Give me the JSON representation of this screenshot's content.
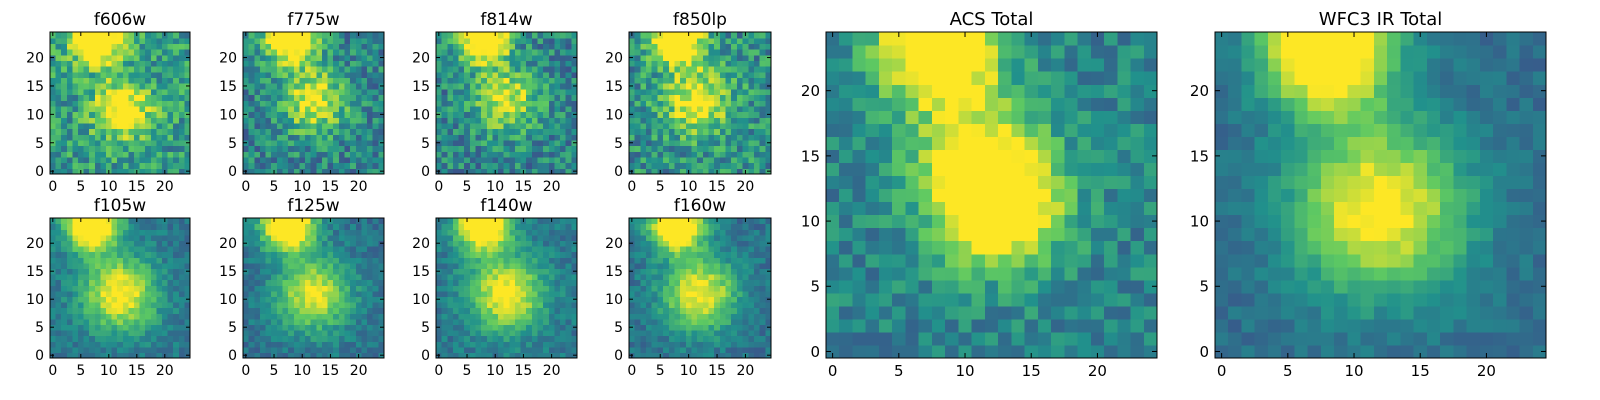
{
  "figure": {
    "colormap": "viridis",
    "ink": "#000000"
  },
  "chart_data": [
    {
      "type": "heatmap",
      "title": "f606w",
      "xlim": [
        0,
        24
      ],
      "ylim": [
        0,
        24
      ],
      "xticks": [
        "0",
        "5",
        "10",
        "15",
        "20"
      ],
      "yticks": [
        "0",
        "5",
        "10",
        "15",
        "20"
      ],
      "peaks": [
        [
          8,
          23.5,
          1.0,
          3.0
        ],
        [
          12.5,
          11,
          0.6,
          3.5
        ]
      ],
      "base": 0.55,
      "noise": 0.42,
      "seed": 11
    },
    {
      "type": "heatmap",
      "title": "f775w",
      "xlim": [
        0,
        24
      ],
      "ylim": [
        0,
        24
      ],
      "xticks": [
        "0",
        "5",
        "10",
        "15",
        "20"
      ],
      "yticks": [
        "0",
        "5",
        "10",
        "15",
        "20"
      ],
      "peaks": [
        [
          8,
          23.5,
          1.0,
          3.0
        ],
        [
          12,
          12.5,
          0.55,
          4.0
        ]
      ],
      "base": 0.45,
      "noise": 0.4,
      "seed": 23
    },
    {
      "type": "heatmap",
      "title": "f814w",
      "xlim": [
        0,
        24
      ],
      "ylim": [
        0,
        24
      ],
      "xticks": [
        "0",
        "5",
        "10",
        "15",
        "20"
      ],
      "yticks": [
        "0",
        "5",
        "10",
        "15",
        "20"
      ],
      "peaks": [
        [
          8,
          23.5,
          1.0,
          3.0
        ],
        [
          12,
          12.5,
          0.5,
          4.0
        ]
      ],
      "base": 0.45,
      "noise": 0.4,
      "seed": 37
    },
    {
      "type": "heatmap",
      "title": "f850lp",
      "xlim": [
        0,
        24
      ],
      "ylim": [
        0,
        24
      ],
      "xticks": [
        "0",
        "5",
        "10",
        "15",
        "20"
      ],
      "yticks": [
        "0",
        "5",
        "10",
        "15",
        "20"
      ],
      "peaks": [
        [
          8,
          23.5,
          1.0,
          3.0
        ],
        [
          11.5,
          12.5,
          0.55,
          4.0
        ]
      ],
      "base": 0.5,
      "noise": 0.42,
      "seed": 41
    },
    {
      "type": "heatmap",
      "title": "f105w",
      "xlim": [
        0,
        24
      ],
      "ylim": [
        0,
        24
      ],
      "xticks": [
        "0",
        "5",
        "10",
        "15",
        "20"
      ],
      "yticks": [
        "0",
        "5",
        "10",
        "15",
        "20"
      ],
      "peaks": [
        [
          7,
          23.5,
          1.0,
          3.2
        ],
        [
          12,
          11,
          0.65,
          4.5
        ]
      ],
      "base": 0.4,
      "noise": 0.2,
      "seed": 53
    },
    {
      "type": "heatmap",
      "title": "f125w",
      "xlim": [
        0,
        24
      ],
      "ylim": [
        0,
        24
      ],
      "xticks": [
        "0",
        "5",
        "10",
        "15",
        "20"
      ],
      "yticks": [
        "0",
        "5",
        "10",
        "15",
        "20"
      ],
      "peaks": [
        [
          7.5,
          23.5,
          1.0,
          3.2
        ],
        [
          12,
          11,
          0.6,
          4.5
        ]
      ],
      "base": 0.38,
      "noise": 0.2,
      "seed": 67
    },
    {
      "type": "heatmap",
      "title": "f140w",
      "xlim": [
        0,
        24
      ],
      "ylim": [
        0,
        24
      ],
      "xticks": [
        "0",
        "5",
        "10",
        "15",
        "20"
      ],
      "yticks": [
        "0",
        "5",
        "10",
        "15",
        "20"
      ],
      "peaks": [
        [
          8,
          23.5,
          1.0,
          3.2
        ],
        [
          12,
          11,
          0.65,
          4.5
        ]
      ],
      "base": 0.4,
      "noise": 0.2,
      "seed": 71
    },
    {
      "type": "heatmap",
      "title": "f160w",
      "xlim": [
        0,
        24
      ],
      "ylim": [
        0,
        24
      ],
      "xticks": [
        "0",
        "5",
        "10",
        "15",
        "20"
      ],
      "yticks": [
        "0",
        "5",
        "10",
        "15",
        "20"
      ],
      "peaks": [
        [
          8,
          23.5,
          1.0,
          3.2
        ],
        [
          12,
          11,
          0.65,
          4.5
        ]
      ],
      "base": 0.38,
      "noise": 0.2,
      "seed": 83
    },
    {
      "type": "heatmap",
      "title": "ACS Total",
      "xlim": [
        0,
        24
      ],
      "ylim": [
        0,
        24
      ],
      "xticks": [
        "0",
        "5",
        "10",
        "15",
        "20"
      ],
      "yticks": [
        "0",
        "5",
        "10",
        "15",
        "20"
      ],
      "peaks": [
        [
          8,
          23.5,
          1.0,
          3.0
        ],
        [
          12.5,
          11,
          0.75,
          3.2
        ],
        [
          11,
          15,
          0.5,
          3.5
        ]
      ],
      "base": 0.45,
      "noise": 0.28,
      "seed": 97
    },
    {
      "type": "heatmap",
      "title": "WFC3 IR Total",
      "xlim": [
        0,
        24
      ],
      "ylim": [
        0,
        24
      ],
      "xticks": [
        "0",
        "5",
        "10",
        "15",
        "20"
      ],
      "yticks": [
        "0",
        "5",
        "10",
        "15",
        "20"
      ],
      "peaks": [
        [
          8,
          23.5,
          1.05,
          3.3
        ],
        [
          12,
          11,
          0.7,
          4.5
        ]
      ],
      "base": 0.36,
      "noise": 0.14,
      "seed": 101
    }
  ]
}
